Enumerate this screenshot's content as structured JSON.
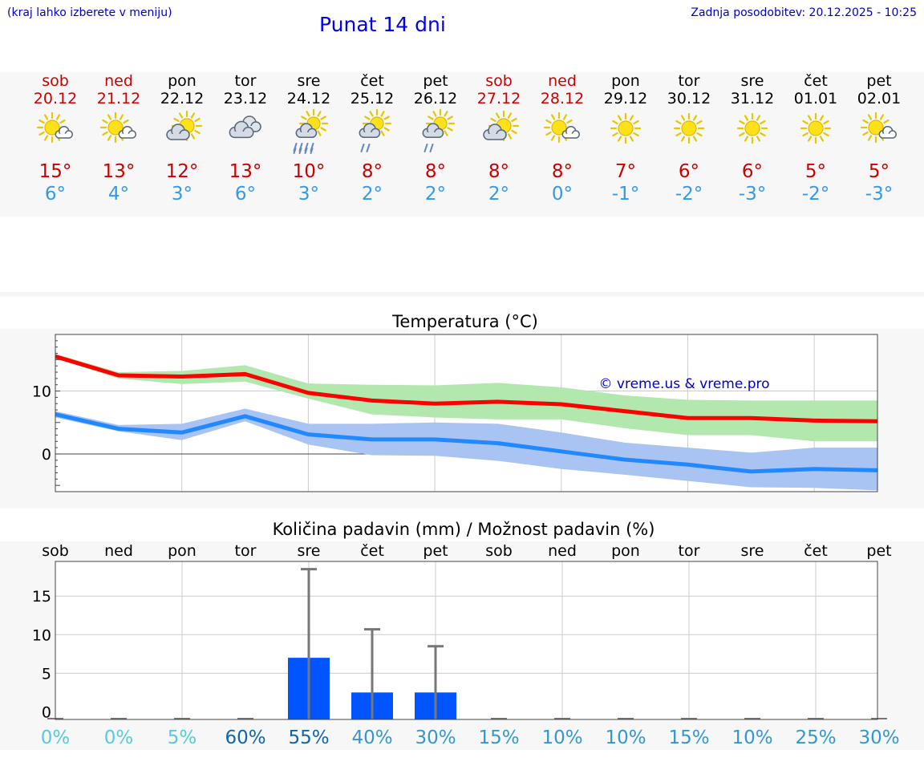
{
  "header": {
    "note": "(kraj lahko izberete v meniju)",
    "title": "Punat 14 dni",
    "updated": "Zadnja posodobitev: 20.12.2025 - 10:25"
  },
  "forecast": [
    {
      "day": "sob",
      "date": "20.12",
      "weekend": true,
      "icon": "sun-cloud",
      "tmax": "15°",
      "tmin": "6°"
    },
    {
      "day": "ned",
      "date": "21.12",
      "weekend": true,
      "icon": "sun-cloud",
      "tmax": "13°",
      "tmin": "4°"
    },
    {
      "day": "pon",
      "date": "22.12",
      "weekend": false,
      "icon": "cloud-sun",
      "tmax": "12°",
      "tmin": "3°"
    },
    {
      "day": "tor",
      "date": "23.12",
      "weekend": false,
      "icon": "cloudy",
      "tmax": "13°",
      "tmin": "6°"
    },
    {
      "day": "sre",
      "date": "24.12",
      "weekend": false,
      "icon": "rain",
      "tmax": "10°",
      "tmin": "3°"
    },
    {
      "day": "čet",
      "date": "25.12",
      "weekend": false,
      "icon": "light-rain",
      "tmax": "8°",
      "tmin": "2°"
    },
    {
      "day": "pet",
      "date": "26.12",
      "weekend": false,
      "icon": "light-rain",
      "tmax": "8°",
      "tmin": "2°"
    },
    {
      "day": "sob",
      "date": "27.12",
      "weekend": true,
      "icon": "cloud-sun",
      "tmax": "8°",
      "tmin": "2°"
    },
    {
      "day": "ned",
      "date": "28.12",
      "weekend": true,
      "icon": "sun-cloud",
      "tmax": "8°",
      "tmin": "0°"
    },
    {
      "day": "pon",
      "date": "29.12",
      "weekend": false,
      "icon": "sun",
      "tmax": "7°",
      "tmin": "-1°"
    },
    {
      "day": "tor",
      "date": "30.12",
      "weekend": false,
      "icon": "sun",
      "tmax": "6°",
      "tmin": "-2°"
    },
    {
      "day": "sre",
      "date": "31.12",
      "weekend": false,
      "icon": "sun",
      "tmax": "6°",
      "tmin": "-3°"
    },
    {
      "day": "čet",
      "date": "01.01",
      "weekend": false,
      "icon": "sun",
      "tmax": "5°",
      "tmin": "-2°"
    },
    {
      "day": "pet",
      "date": "02.01",
      "weekend": false,
      "icon": "sun-cloud",
      "tmax": "5°",
      "tmin": "-3°"
    }
  ],
  "colors": {
    "weekend": "#cc0000",
    "weekday": "#000000",
    "tmax": "#cc0000",
    "tmin": "#3399ee",
    "max_line": "#ff0000",
    "max_band": "#b2e8ad",
    "min_line": "#2288ff",
    "min_band": "#a9c3f3",
    "bar": "#0055ff",
    "whisker": "#777777",
    "copyright": "#0000cc"
  },
  "chart_data": [
    {
      "type": "line",
      "title": "Temperatura (°C)",
      "xlabel": "",
      "ylabel": "",
      "ylim": [
        -6,
        19
      ],
      "yticks": [
        0,
        10
      ],
      "minor_ticks": [
        -5,
        5,
        15
      ],
      "annotation": "© vreme.us & vreme.pro",
      "categories": [
        "20.12",
        "21.12",
        "22.12",
        "23.12",
        "24.12",
        "25.12",
        "26.12",
        "27.12",
        "28.12",
        "29.12",
        "30.12",
        "31.12",
        "01.01",
        "02.01"
      ],
      "series": [
        {
          "name": "max",
          "values": [
            15.5,
            12.5,
            12.3,
            12.7,
            9.7,
            8.5,
            8.0,
            8.3,
            7.9,
            6.8,
            5.7,
            5.7,
            5.3,
            5.2
          ],
          "band_high": [
            15.9,
            13.0,
            13.2,
            14.1,
            11.2,
            11.0,
            10.9,
            11.3,
            10.6,
            9.3,
            8.6,
            8.5,
            8.5,
            8.5
          ],
          "band_low": [
            15.2,
            12.0,
            11.1,
            11.5,
            8.8,
            6.3,
            5.8,
            5.5,
            5.5,
            4.1,
            3.0,
            3.0,
            2.0,
            2.0
          ]
        },
        {
          "name": "min",
          "values": [
            6.3,
            4.0,
            3.4,
            6.0,
            3.1,
            2.3,
            2.3,
            1.7,
            0.4,
            -0.9,
            -1.7,
            -2.8,
            -2.4,
            -2.6
          ],
          "band_high": [
            6.8,
            4.6,
            4.8,
            7.2,
            4.8,
            4.8,
            5.0,
            4.8,
            3.4,
            1.8,
            1.0,
            0.2,
            1.0,
            1.0
          ],
          "band_low": [
            5.8,
            3.6,
            2.2,
            5.2,
            1.5,
            -0.2,
            -0.3,
            -1.1,
            -2.4,
            -3.3,
            -4.3,
            -5.3,
            -5.4,
            -5.8
          ]
        }
      ]
    },
    {
      "type": "bar",
      "title": "Količina padavin (mm) / Možnost padavin (%)",
      "xlabel": "",
      "ylabel": "",
      "ylim": [
        -1,
        19.5
      ],
      "yticks": [
        0,
        5,
        10,
        15
      ],
      "days": [
        "sob",
        "ned",
        "pon",
        "tor",
        "sre",
        "čet",
        "pet",
        "sob",
        "ned",
        "pon",
        "tor",
        "sre",
        "čet",
        "pet"
      ],
      "values": [
        0,
        0,
        0,
        0,
        7.0,
        2.5,
        2.5,
        0,
        0,
        0,
        0,
        0,
        0,
        0
      ],
      "max_values": [
        0,
        0,
        0,
        0,
        18.5,
        10.7,
        8.5,
        0,
        0,
        0,
        0,
        0,
        0,
        0
      ],
      "probability": [
        "0%",
        "0%",
        "5%",
        "60%",
        "55%",
        "40%",
        "30%",
        "15%",
        "10%",
        "10%",
        "15%",
        "10%",
        "25%",
        "30%"
      ],
      "probability_colors": [
        "#55ccdd",
        "#55ccdd",
        "#55ccdd",
        "#1166aa",
        "#1166aa",
        "#3399cc",
        "#3399cc",
        "#3399cc",
        "#3399cc",
        "#3399cc",
        "#3399cc",
        "#3399cc",
        "#3399cc",
        "#3399cc"
      ]
    }
  ]
}
